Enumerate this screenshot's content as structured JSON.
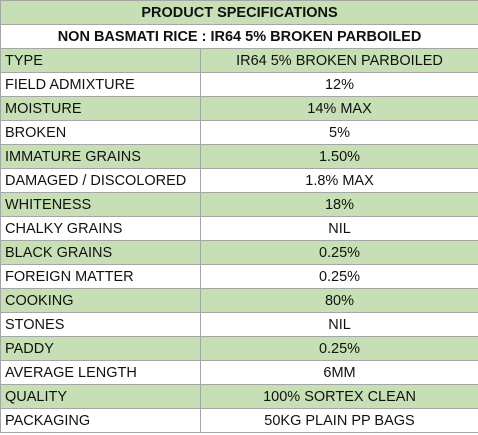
{
  "title": "PRODUCT SPECIFICATIONS",
  "subtitle": "NON BASMATI RICE : IR64 5% BROKEN PARBOILED",
  "colors": {
    "header_green": "#c6dfb4",
    "row_alt_green": "#c6dfb4",
    "row_white": "#ffffff",
    "grid": "#a6a6a6"
  },
  "rows": [
    {
      "param": "TYPE",
      "value": "IR64 5% BROKEN PARBOILED"
    },
    {
      "param": "FIELD ADMIXTURE",
      "value": "12%"
    },
    {
      "param": "MOISTURE",
      "value": "14% MAX"
    },
    {
      "param": "BROKEN",
      "value": "5%"
    },
    {
      "param": "IMMATURE GRAINS",
      "value": "1.50%"
    },
    {
      "param": "DAMAGED / DISCOLORED",
      "value": "1.8% MAX"
    },
    {
      "param": "WHITENESS",
      "value": "18%"
    },
    {
      "param": "CHALKY GRAINS",
      "value": "NIL"
    },
    {
      "param": "BLACK GRAINS",
      "value": "0.25%"
    },
    {
      "param": "FOREIGN MATTER",
      "value": "0.25%"
    },
    {
      "param": "COOKING",
      "value": "80%"
    },
    {
      "param": "STONES",
      "value": "NIL"
    },
    {
      "param": "PADDY",
      "value": "0.25%"
    },
    {
      "param": "AVERAGE LENGTH",
      "value": "6MM"
    },
    {
      "param": "QUALITY",
      "value": "100% SORTEX CLEAN"
    },
    {
      "param": "PACKAGING",
      "value": "50KG PLAIN PP BAGS"
    }
  ]
}
